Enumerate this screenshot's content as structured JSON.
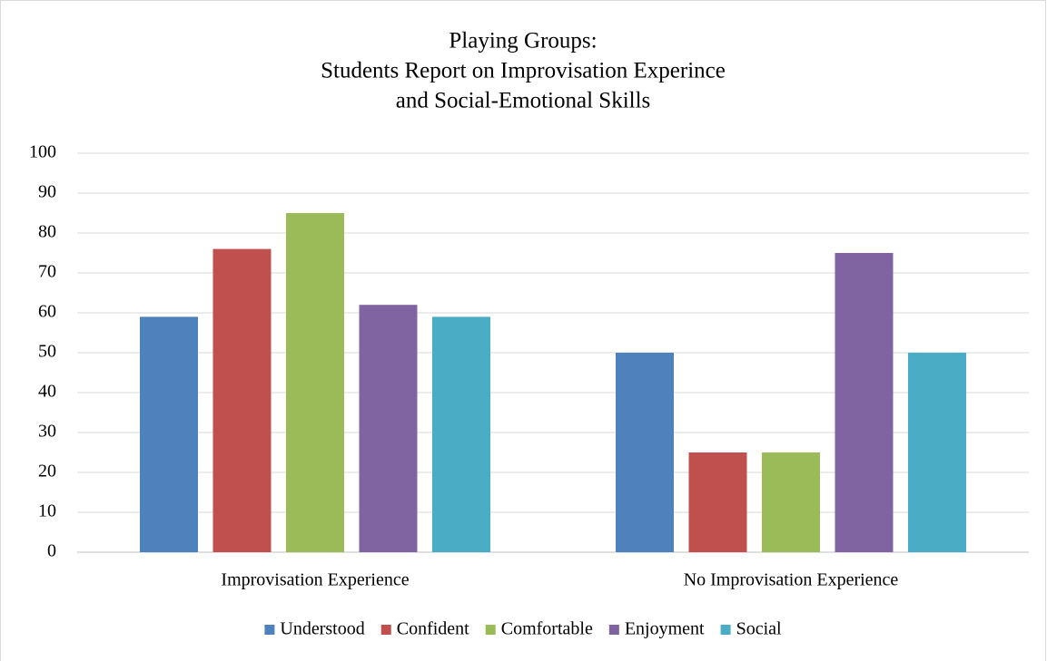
{
  "chart_data": {
    "type": "bar",
    "title": [
      "Playing Groups:",
      "Students Report on Improvisation Experince",
      "and Social-Emotional Skills"
    ],
    "categories": [
      "Improvisation Experience",
      "No Improvisation Experience"
    ],
    "series": [
      {
        "name": "Understood",
        "color": "#4f81bd",
        "values": [
          59,
          50
        ]
      },
      {
        "name": "Confident",
        "color": "#c0504d",
        "values": [
          76,
          25
        ]
      },
      {
        "name": "Comfortable",
        "color": "#9bbb59",
        "values": [
          85,
          25
        ]
      },
      {
        "name": "Enjoyment",
        "color": "#8064a2",
        "values": [
          62,
          75
        ]
      },
      {
        "name": "Social",
        "color": "#4bacc6",
        "values": [
          59,
          50
        ]
      }
    ],
    "ylim": [
      0,
      100
    ],
    "yticks": [
      0,
      10,
      20,
      30,
      40,
      50,
      60,
      70,
      80,
      90,
      100
    ],
    "grid": true,
    "legend": "bottom"
  }
}
